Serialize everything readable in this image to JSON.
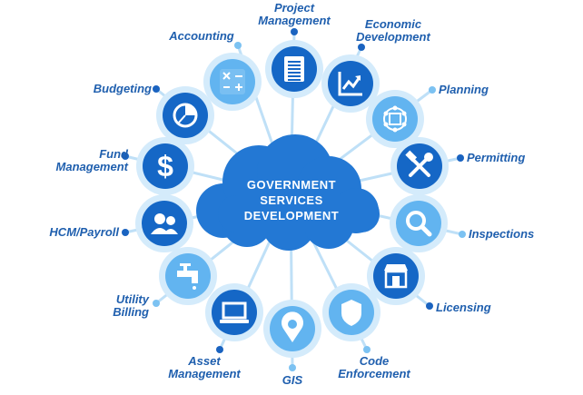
{
  "hub": {
    "lines": [
      "GOVERNMENT",
      "SERVICES",
      "DEVELOPMENT"
    ],
    "color": "#2378d4"
  },
  "colors": {
    "dark_node": "#1567c6",
    "light_node": "#62b4f0",
    "spoke": "#bfe0f7",
    "ring": "#d4ebfb",
    "label": "#1f5fae",
    "dot_dark": "#1a63c0",
    "dot_light": "#7cc2f2"
  },
  "nodes": [
    {
      "id": "project-management",
      "label_lines": [
        "Project",
        "Management"
      ],
      "icon": "document-list-icon",
      "tone": "dark"
    },
    {
      "id": "economic-development",
      "label_lines": [
        "Economic",
        "Development"
      ],
      "icon": "line-chart-icon",
      "tone": "dark"
    },
    {
      "id": "planning",
      "label_lines": [
        "Planning"
      ],
      "icon": "network-cube-icon",
      "tone": "light"
    },
    {
      "id": "permitting",
      "label_lines": [
        "Permitting"
      ],
      "icon": "hammer-wrench-icon",
      "tone": "dark"
    },
    {
      "id": "inspections",
      "label_lines": [
        "Inspections"
      ],
      "icon": "magnifier-icon",
      "tone": "light"
    },
    {
      "id": "licensing",
      "label_lines": [
        "Licensing"
      ],
      "icon": "storefront-icon",
      "tone": "dark"
    },
    {
      "id": "code-enforcement",
      "label_lines": [
        "Code",
        "Enforcement"
      ],
      "icon": "badge-icon",
      "tone": "light"
    },
    {
      "id": "gis",
      "label_lines": [
        "GIS"
      ],
      "icon": "map-pin-icon",
      "tone": "light"
    },
    {
      "id": "asset-management",
      "label_lines": [
        "Asset",
        "Management"
      ],
      "icon": "laptop-icon",
      "tone": "dark"
    },
    {
      "id": "utility-billing",
      "label_lines": [
        "Utility",
        "Billing"
      ],
      "icon": "faucet-icon",
      "tone": "light"
    },
    {
      "id": "hcm-payroll",
      "label_lines": [
        "HCM/Payroll"
      ],
      "icon": "people-icon",
      "tone": "dark"
    },
    {
      "id": "fund-management",
      "label_lines": [
        "Fund",
        "Management"
      ],
      "icon": "dollar-icon",
      "tone": "dark"
    },
    {
      "id": "budgeting",
      "label_lines": [
        "Budgeting"
      ],
      "icon": "pie-chart-icon",
      "tone": "dark"
    },
    {
      "id": "accounting",
      "label_lines": [
        "Accounting"
      ],
      "icon": "calculator-icon",
      "tone": "light"
    }
  ]
}
